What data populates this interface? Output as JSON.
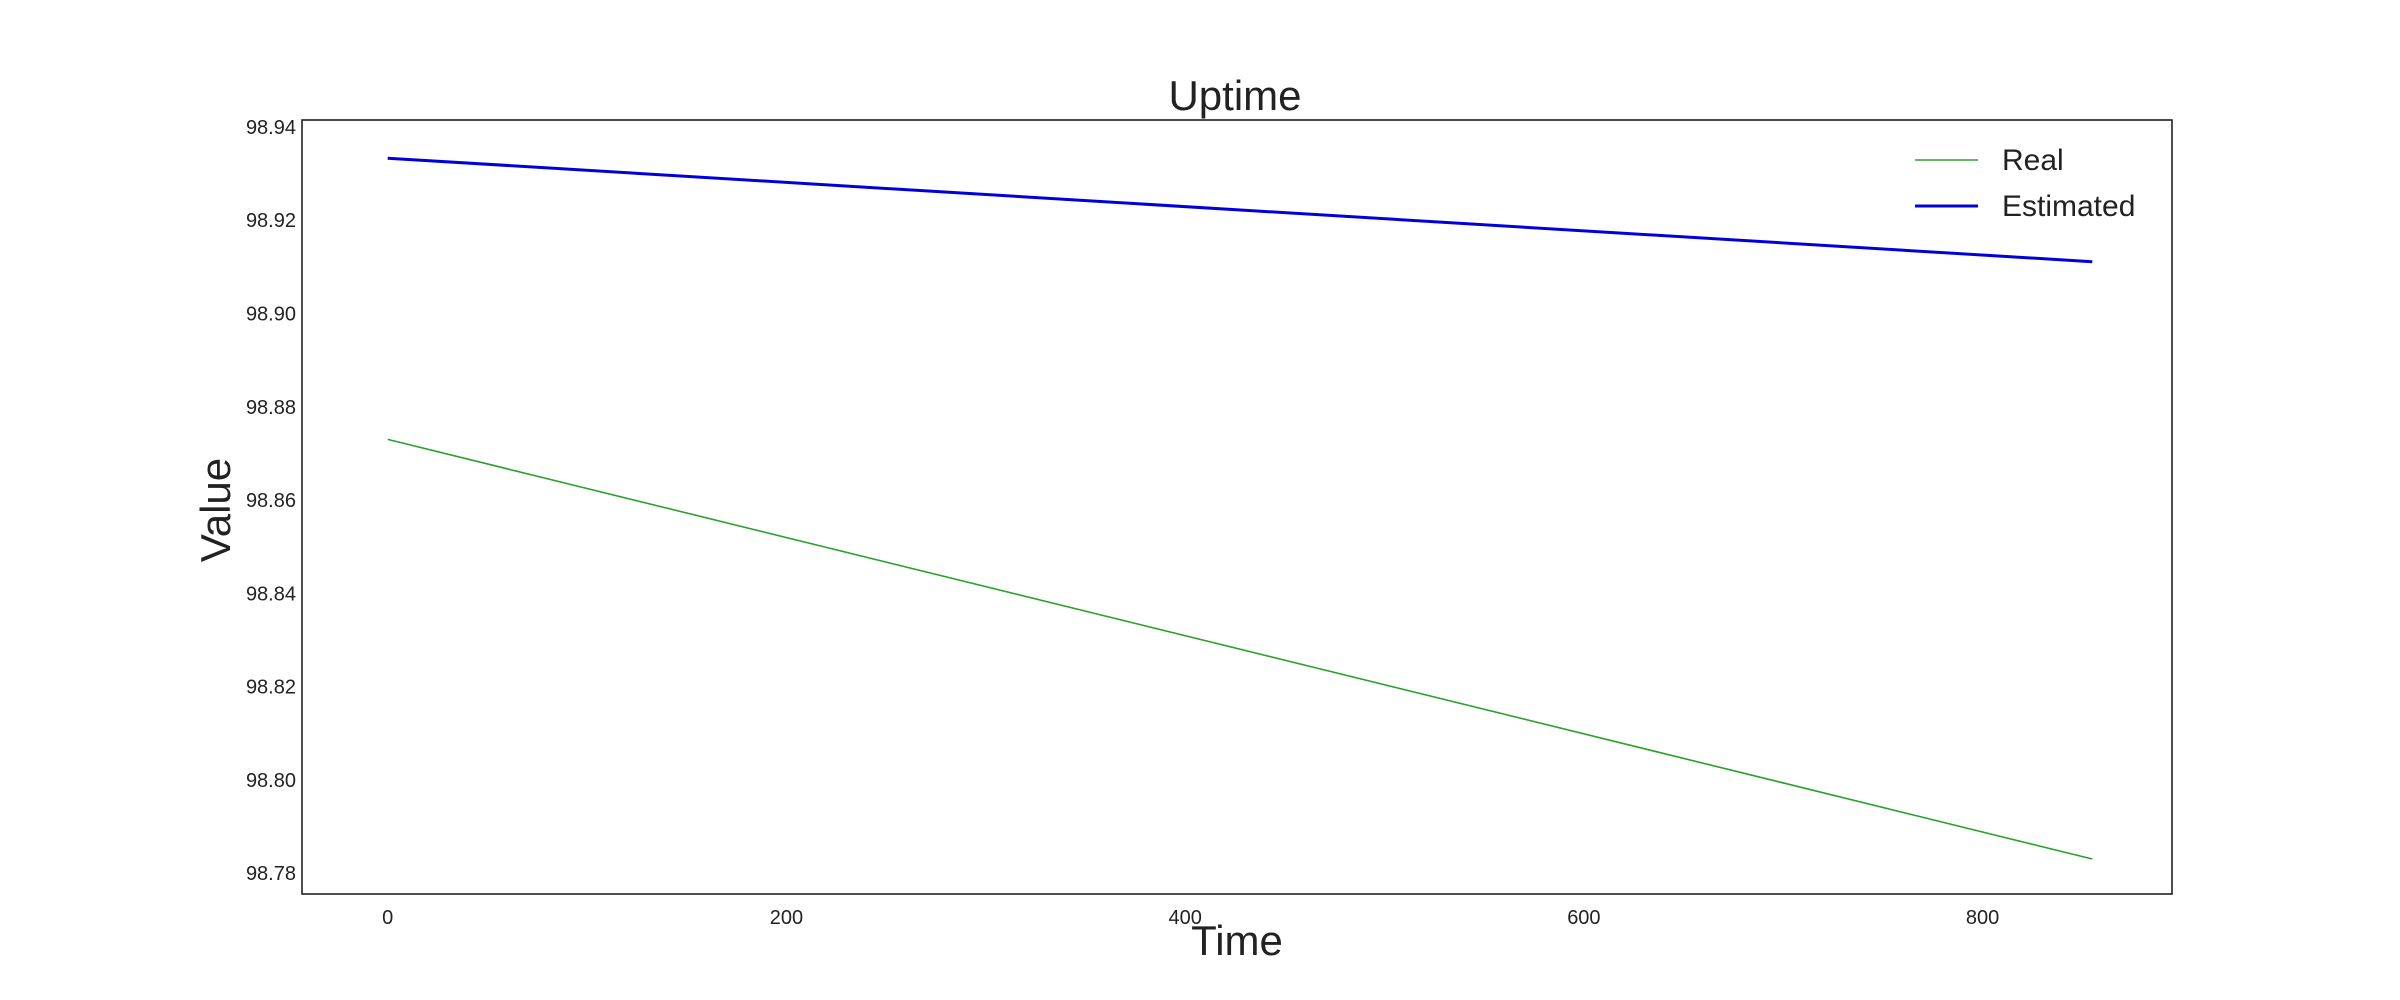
{
  "chart_data": {
    "type": "line",
    "title": "Uptime",
    "xlabel": "Time",
    "ylabel": "Value",
    "xlim": [
      -43,
      895
    ],
    "ylim": [
      98.7755,
      98.9415
    ],
    "x_ticks": [
      0,
      200,
      400,
      600,
      800
    ],
    "y_ticks": [
      98.78,
      98.8,
      98.82,
      98.84,
      98.86,
      98.88,
      98.9,
      98.92,
      98.94
    ],
    "grid": false,
    "legend_position": "top-right",
    "series": [
      {
        "name": "Real",
        "color": "#2ca02c",
        "x": [
          0,
          855
        ],
        "y": [
          98.873,
          98.783
        ]
      },
      {
        "name": "Estimated",
        "color": "#0000dd",
        "x": [
          0,
          855
        ],
        "y": [
          98.9333,
          98.9111
        ]
      }
    ]
  }
}
